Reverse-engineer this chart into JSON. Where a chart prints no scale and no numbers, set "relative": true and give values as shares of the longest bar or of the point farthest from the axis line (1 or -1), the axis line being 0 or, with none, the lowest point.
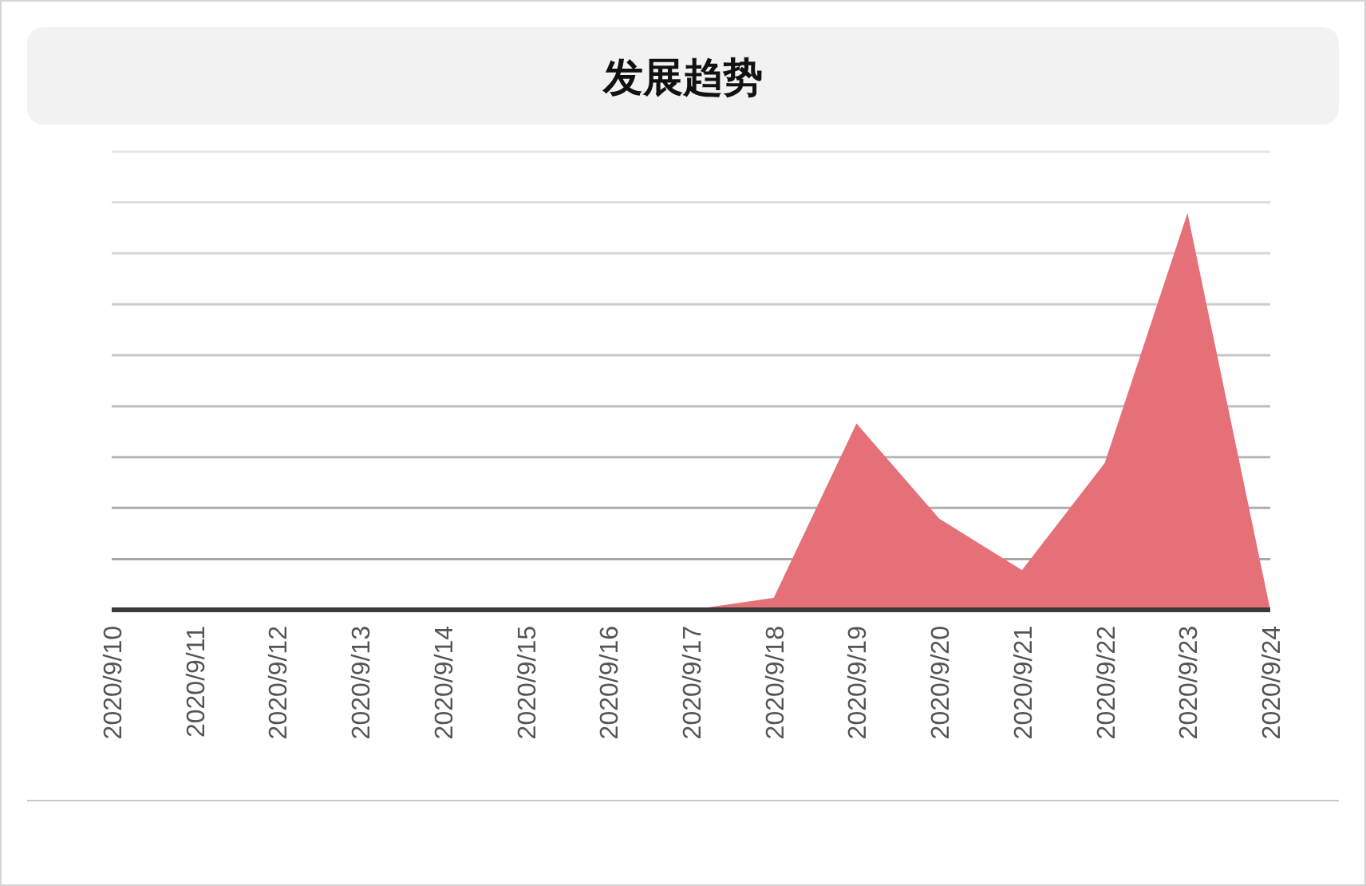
{
  "chart_data": {
    "type": "area",
    "title": "发展趋势",
    "categories": [
      "2020/9/10",
      "2020/9/11",
      "2020/9/12",
      "2020/9/13",
      "2020/9/14",
      "2020/9/15",
      "2020/9/16",
      "2020/9/17",
      "2020/9/18",
      "2020/9/19",
      "2020/9/20",
      "2020/9/21",
      "2020/9/22",
      "2020/9/23",
      "2020/9/24"
    ],
    "values": [
      0,
      0,
      0,
      0,
      0,
      0,
      0,
      0,
      0.03,
      0.47,
      0.23,
      0.1,
      0.37,
      1,
      0
    ],
    "color": "#e57078",
    "relative": true,
    "ref_lines": [
      {
        "axis": "y",
        "value": 0.128,
        "color": "#a6a6a6"
      },
      {
        "axis": "y",
        "value": 0.257,
        "color": "#aeaeae"
      },
      {
        "axis": "y",
        "value": 0.385,
        "color": "#b6b6b6"
      },
      {
        "axis": "y",
        "value": 0.513,
        "color": "#bebebe"
      },
      {
        "axis": "y",
        "value": 0.642,
        "color": "#c6c6c6"
      },
      {
        "axis": "y",
        "value": 0.77,
        "color": "#cecece"
      },
      {
        "axis": "y",
        "value": 0.899,
        "color": "#d6d6d6"
      },
      {
        "axis": "y",
        "value": 1.027,
        "color": "#dedede"
      },
      {
        "axis": "y",
        "value": 1.155,
        "color": "#e6e6e6"
      }
    ]
  }
}
